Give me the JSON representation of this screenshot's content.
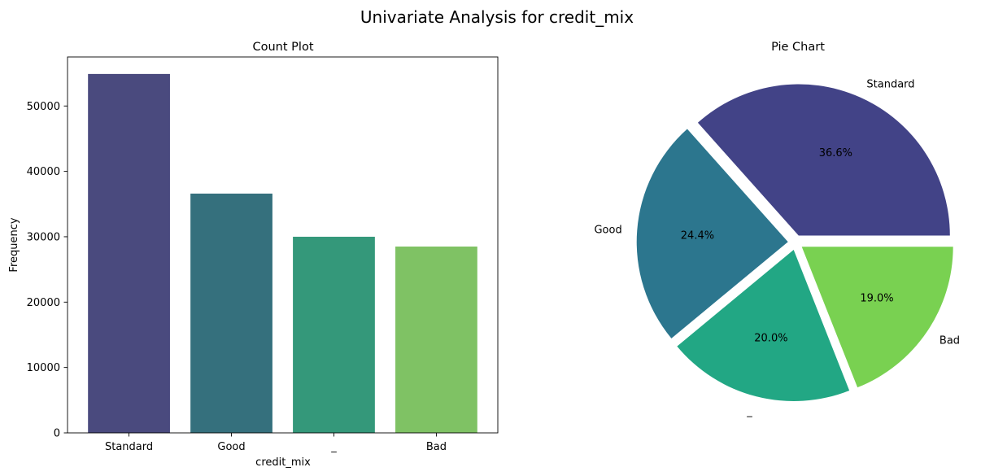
{
  "figure": {
    "suptitle": "Univariate Analysis for credit_mix"
  },
  "chart_data": [
    {
      "type": "bar",
      "title": "Count Plot",
      "xlabel": "credit_mix",
      "ylabel": "Frequency",
      "categories": [
        "Standard",
        "Good",
        "_",
        "Bad"
      ],
      "values": [
        54900,
        36600,
        30000,
        28500
      ],
      "ylim": [
        0,
        57500
      ],
      "yticks": [
        0,
        10000,
        20000,
        30000,
        40000,
        50000
      ],
      "colors": [
        "#4a4a7e",
        "#35707d",
        "#34987a",
        "#7fc264"
      ],
      "grid": false
    },
    {
      "type": "pie",
      "title": "Pie Chart",
      "labels": [
        "Standard",
        "Good",
        "_",
        "Bad"
      ],
      "percent_labels": [
        "36.6%",
        "24.4%",
        "20.0%",
        "19.0%"
      ],
      "values": [
        36.6,
        24.4,
        20.0,
        19.0
      ],
      "colors": [
        "#424387",
        "#2c768e",
        "#22a784",
        "#79d151"
      ],
      "explode": true
    }
  ]
}
